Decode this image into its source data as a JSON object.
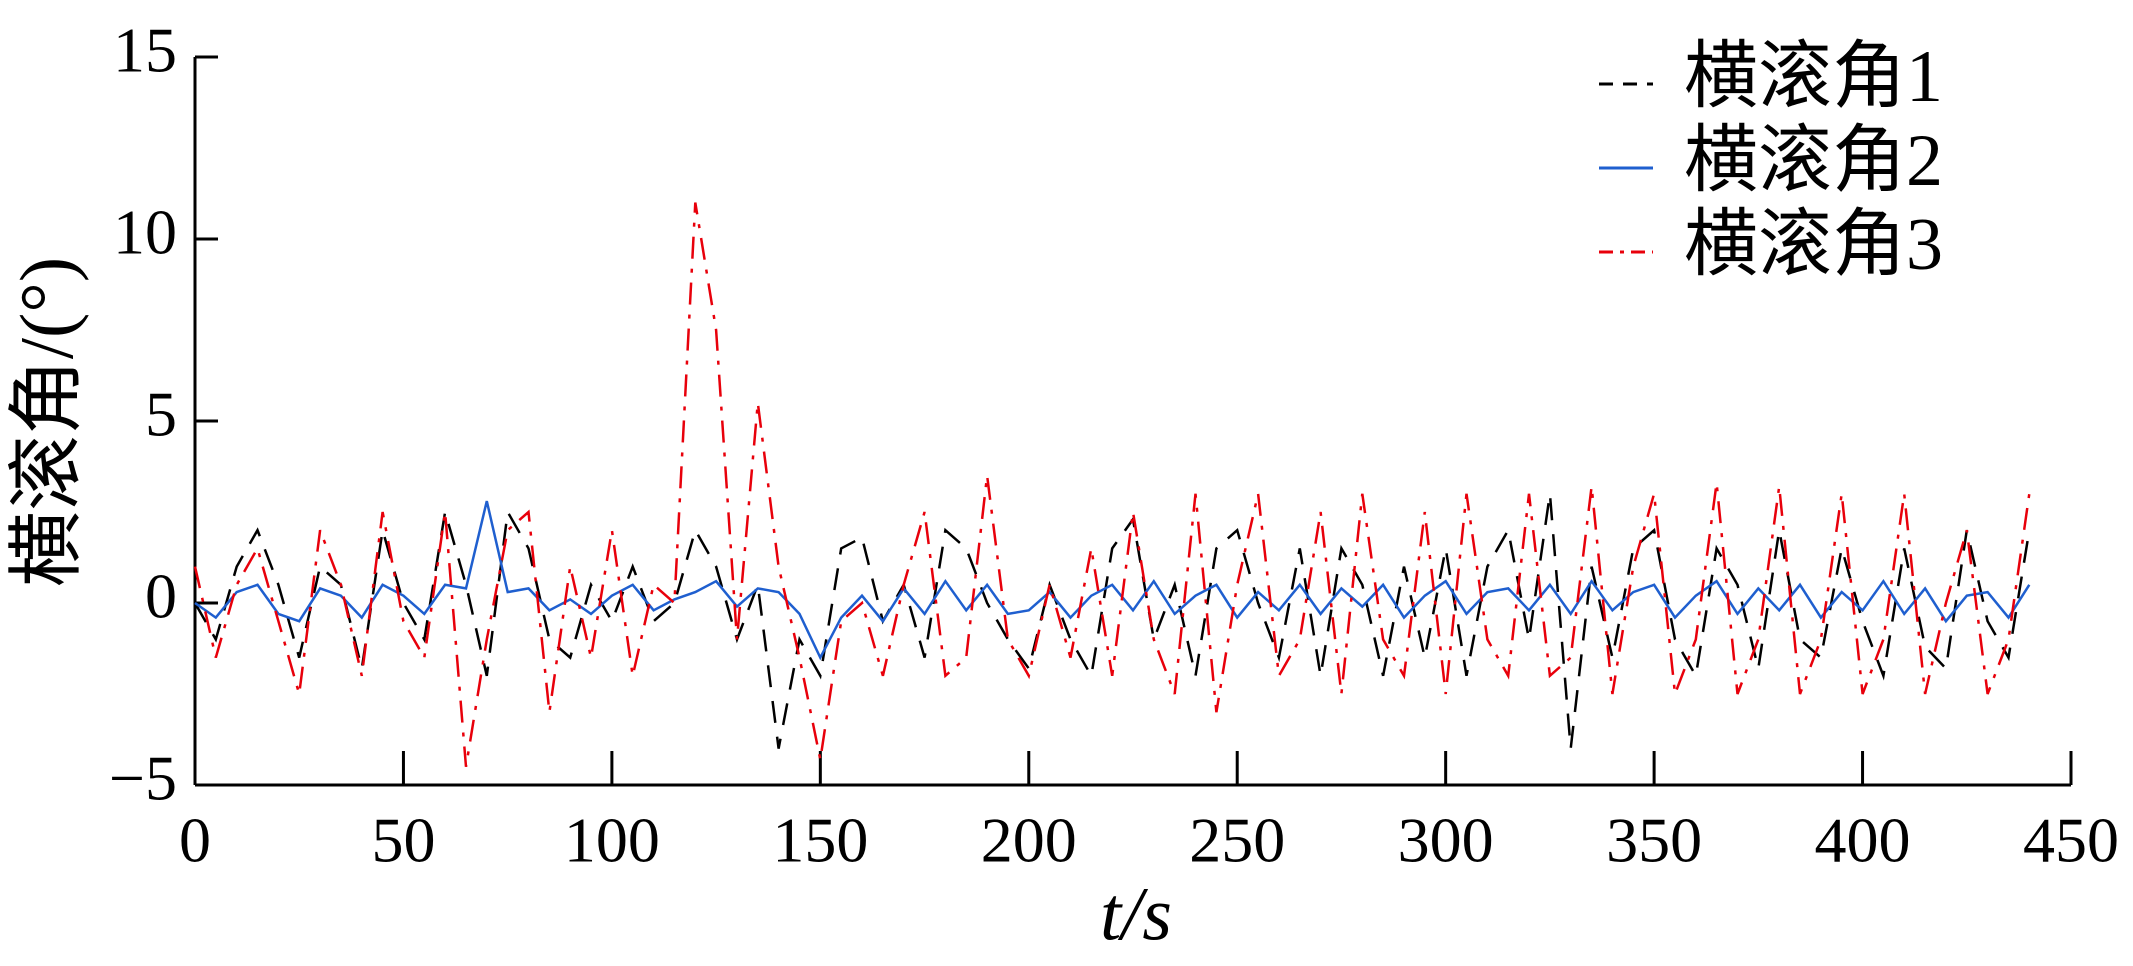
{
  "chart_data": {
    "type": "line",
    "x_label": "t/s",
    "y_label": "横滚角/(°)",
    "xlim": [
      0,
      450
    ],
    "xticks": [
      0,
      50,
      100,
      150,
      200,
      250,
      300,
      350,
      400,
      450
    ],
    "ylim": [
      -5,
      15
    ],
    "yticks": [
      {
        "value": -5,
        "label": "−5"
      },
      0,
      5,
      10,
      15
    ],
    "legend": "upper right",
    "x": [
      0,
      5,
      10,
      15,
      20,
      25,
      30,
      35,
      40,
      45,
      50,
      55,
      60,
      65,
      70,
      75,
      80,
      85,
      90,
      95,
      100,
      105,
      110,
      115,
      120,
      125,
      130,
      135,
      140,
      145,
      150,
      155,
      160,
      165,
      170,
      175,
      180,
      185,
      190,
      195,
      200,
      205,
      210,
      215,
      220,
      225,
      230,
      235,
      240,
      245,
      250,
      255,
      260,
      265,
      270,
      275,
      280,
      285,
      290,
      295,
      300,
      305,
      310,
      315,
      320,
      325,
      330,
      335,
      340,
      345,
      350,
      355,
      360,
      365,
      370,
      375,
      380,
      385,
      390,
      395,
      400,
      405,
      410,
      415,
      420,
      425,
      430,
      435,
      440
    ],
    "series": [
      {
        "name": "横滚角1",
        "color": "#000000",
        "linestyle": "dashed",
        "values": [
          0,
          -1,
          1,
          2,
          0.5,
          -1.5,
          1,
          0.5,
          -1.8,
          2,
          0,
          -1,
          2.5,
          0.5,
          -2,
          2.5,
          1.5,
          -1,
          -1.5,
          0.5,
          -0.5,
          1,
          -0.5,
          0,
          2,
          1,
          -1,
          0.5,
          -4,
          -1,
          -2,
          1.5,
          1.8,
          -0.5,
          0.5,
          -1.5,
          2,
          1.5,
          0,
          -1,
          -1.8,
          0.5,
          -1,
          -2,
          1.5,
          2.3,
          -1,
          0.5,
          -2,
          1.5,
          2,
          0,
          -1.5,
          1.5,
          -2,
          1.5,
          0.5,
          -2,
          1,
          -1.5,
          1.5,
          -2,
          1,
          2,
          -1,
          3,
          -4,
          1,
          -1.5,
          1.5,
          2,
          -1,
          -2,
          1.5,
          0.5,
          -1.8,
          2,
          -1,
          -1.5,
          1.5,
          -0.5,
          -2,
          1.5,
          -1.2,
          -1.8,
          2,
          -0.5,
          -1.5,
          2
        ]
      },
      {
        "name": "横滚角2",
        "color": "#1f5fcf",
        "linestyle": "solid",
        "values": [
          0,
          -0.4,
          0.3,
          0.5,
          -0.3,
          -0.5,
          0.4,
          0.2,
          -0.4,
          0.5,
          0.2,
          -0.3,
          0.5,
          0.4,
          2.8,
          0.3,
          0.4,
          -0.2,
          0.1,
          -0.3,
          0.2,
          0.5,
          -0.2,
          0.1,
          0.3,
          0.6,
          -0.1,
          0.4,
          0.3,
          -0.3,
          -1.5,
          -0.4,
          0.2,
          -0.5,
          0.4,
          -0.3,
          0.6,
          -0.2,
          0.5,
          -0.3,
          -0.2,
          0.3,
          -0.4,
          0.2,
          0.5,
          -0.2,
          0.6,
          -0.3,
          0.2,
          0.5,
          -0.4,
          0.3,
          -0.2,
          0.5,
          -0.3,
          0.4,
          -0.1,
          0.5,
          -0.4,
          0.2,
          0.6,
          -0.3,
          0.3,
          0.4,
          -0.2,
          0.5,
          -0.3,
          0.6,
          -0.2,
          0.3,
          0.5,
          -0.4,
          0.2,
          0.6,
          -0.3,
          0.4,
          -0.2,
          0.5,
          -0.4,
          0.3,
          -0.2,
          0.6,
          -0.3,
          0.4,
          -0.5,
          0.2,
          0.3,
          -0.4,
          0.5
        ]
      },
      {
        "name": "横滚角3",
        "color": "#e8000b",
        "linestyle": "dashdot",
        "values": [
          1,
          -1.5,
          0.5,
          1.5,
          -0.5,
          -2.5,
          2,
          0.5,
          -2,
          2.5,
          -0.5,
          -1.5,
          2.5,
          -4.5,
          -1,
          2,
          2.5,
          -3,
          1,
          -1.5,
          2,
          -2,
          0.5,
          0,
          11,
          7.5,
          -1,
          5.5,
          1,
          -1.5,
          -4.3,
          -0.5,
          0,
          -2,
          0.5,
          2.5,
          -2,
          -1.5,
          3.5,
          -1,
          -2,
          0.5,
          -1.5,
          1.5,
          -2,
          2.5,
          -1,
          -2.5,
          3,
          -3,
          0.5,
          3,
          -2,
          -1,
          2.5,
          -2.5,
          3,
          -1,
          -2,
          2.5,
          -2.5,
          3,
          -1,
          -2,
          3,
          -2,
          -1.5,
          3.2,
          -2.5,
          1,
          3,
          -2.5,
          -1,
          3.3,
          -2.5,
          -1,
          3.2,
          -2.5,
          -1,
          3,
          -2.5,
          -1,
          3,
          -2.5,
          0,
          2,
          -2.5,
          -1,
          3
        ]
      }
    ]
  }
}
